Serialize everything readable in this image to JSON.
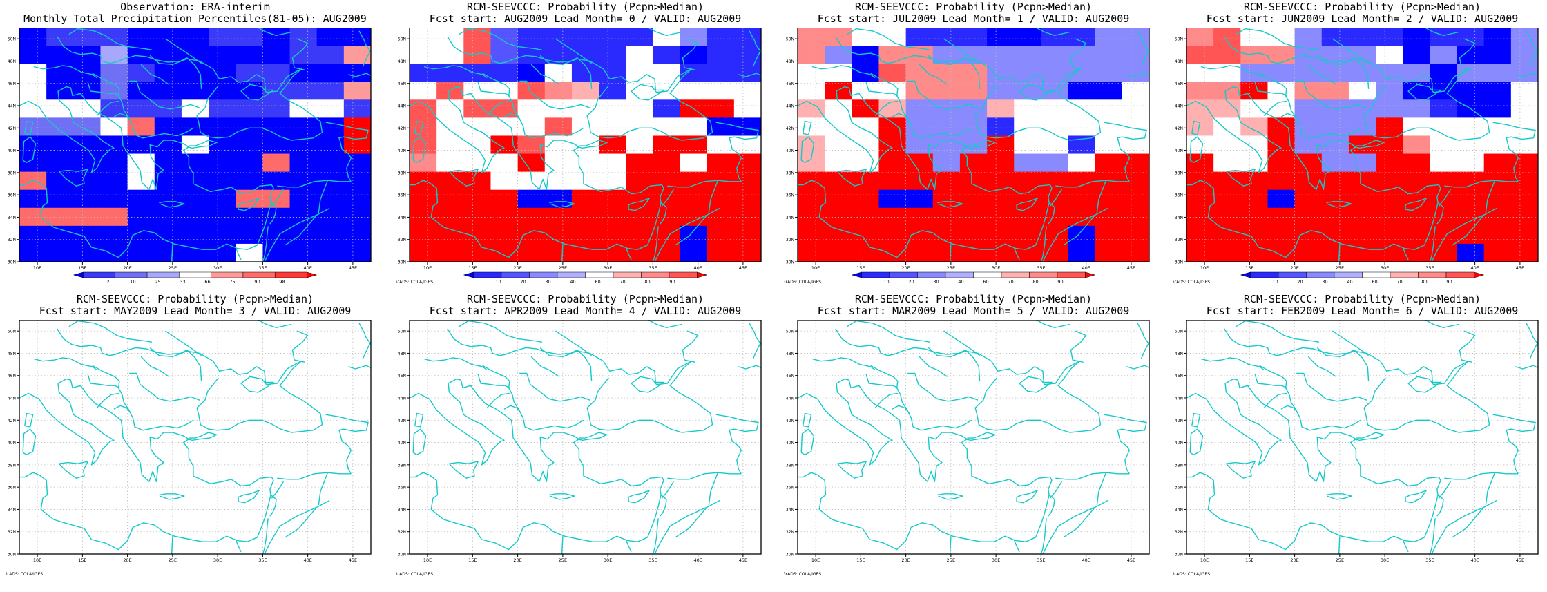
{
  "credit": "GrADS: COLA/IGES",
  "lon_ticks": [
    "10E",
    "15E",
    "20E",
    "25E",
    "30E",
    "35E",
    "40E",
    "45E"
  ],
  "lat_ticks": [
    "30N",
    "32N",
    "34N",
    "36N",
    "38N",
    "40N",
    "42N",
    "44N",
    "46N",
    "48N",
    "50N"
  ],
  "extent": {
    "lon": [
      8,
      47
    ],
    "lat": [
      30,
      51
    ]
  },
  "colors": {
    "coast": "#16c9c9",
    "grid": "#bbbbbb",
    "obs_scale": [
      "#0000ff",
      "#3a3af8",
      "#7070f5",
      "#a8a8fa",
      "#ffffff",
      "#ff9a9a",
      "#ff6a6a",
      "#ff3838",
      "#ff0000"
    ],
    "prob_scale": [
      "#0000ff",
      "#2a2aff",
      "#5555ff",
      "#8a8aff",
      "#b0b0ff",
      "#ffffff",
      "#ffb0b0",
      "#ff8a8a",
      "#ff5555",
      "#ff0000"
    ]
  },
  "legends": {
    "obs": [
      "2",
      "10",
      "25",
      "33",
      "66",
      "75",
      "90",
      "98"
    ],
    "prob": [
      "10",
      "20",
      "30",
      "40",
      "60",
      "70",
      "80",
      "90"
    ]
  },
  "panels": [
    {
      "title1": "Observation: ERA-interim",
      "title2": "Monthly Total Precipitation Percentiles(81-05): AUG2009",
      "scale": "obs",
      "has_data": true,
      "has_credit": false,
      "grid": [
        "0111000110100",
        "0003000000115",
        "4002100011000",
        "4002000001115",
        "4441114111441",
        "2224600000008",
        "0000004000008",
        "0000400006000",
        "6000400000000",
        "0000000066000",
        "6666000000000",
        "0000000000000",
        "0000000040000"
      ]
    },
    {
      "title1": "RCM-SEEVCCC: Probability (Pcpn>Median)",
      "title2": "Fcst start: AUG2009  Lead Month= 0 / VALID: AUG2009",
      "scale": "prob",
      "has_data": true,
      "has_credit": true,
      "grid": [
        "5582111115311",
        "5582111151011",
        "1111051155111",
        "5855876155555",
        "8588555551995",
        "8555585555500",
        "8559855959955",
        "7555955599599",
        "9995555599999",
        "9999009999999",
        "9999999999999",
        "9999999999099",
        "9999999999099"
      ]
    },
    {
      "title1": "RCM-SEEVCCC: Probability (Pcpn>Median)",
      "title2": "Fcst start: JUL2009  Lead Month= 1 / VALID: AUG2009",
      "scale": "prob",
      "has_data": true,
      "has_credit": true,
      "grid": [
        "7755111001133",
        "7307733333333",
        "5508777333333",
        "5955777333005",
        "6596333655555",
        "5559333155555",
        "6559333955155",
        "6559939933599",
        "9999999999999",
        "9990099999999",
        "9999999999999",
        "9999999999099",
        "9999999999099"
      ]
    },
    {
      "title1": "RCM-SEEVCCC: Probability (Pcpn>Median)",
      "title2": "Fcst start: JUN2009  Lead Month= 2 / VALID: AUG2009",
      "scale": "prob",
      "has_data": true,
      "has_credit": true,
      "grid": [
        "7855311101103",
        "8877333503003",
        "5533333330333",
        "7795775300005",
        "6655333331005",
        "6569333955555",
        "5559339975555",
        "9559933995599",
        "9999999999999",
        "9990999999999",
        "9999999999999",
        "9999999999999",
        "9999999999099"
      ]
    },
    {
      "title1": "RCM-SEEVCCC: Probability (Pcpn>Median)",
      "title2": "Fcst start: MAY2009  Lead Month= 3 / VALID: AUG2009",
      "scale": "prob",
      "has_data": false,
      "has_credit": true,
      "grid": []
    },
    {
      "title1": "RCM-SEEVCCC: Probability (Pcpn>Median)",
      "title2": "Fcst start: APR2009  Lead Month= 4 / VALID: AUG2009",
      "scale": "prob",
      "has_data": false,
      "has_credit": true,
      "grid": []
    },
    {
      "title1": "RCM-SEEVCCC: Probability (Pcpn>Median)",
      "title2": "Fcst start: MAR2009  Lead Month= 5 / VALID: AUG2009",
      "scale": "prob",
      "has_data": false,
      "has_credit": true,
      "grid": []
    },
    {
      "title1": "RCM-SEEVCCC: Probability (Pcpn>Median)",
      "title2": "Fcst start: FEB2009  Lead Month= 6 / VALID: AUG2009",
      "scale": "prob",
      "has_data": false,
      "has_credit": true,
      "grid": []
    }
  ]
}
